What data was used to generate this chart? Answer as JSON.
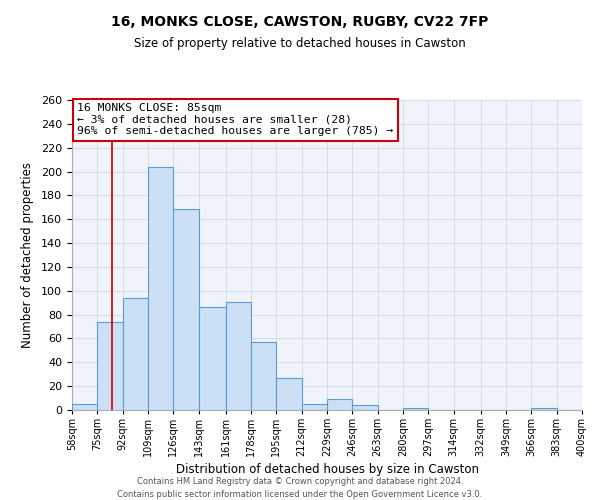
{
  "title": "16, MONKS CLOSE, CAWSTON, RUGBY, CV22 7FP",
  "subtitle": "Size of property relative to detached houses in Cawston",
  "xlabel": "Distribution of detached houses by size in Cawston",
  "ylabel": "Number of detached properties",
  "bin_edges": [
    58,
    75,
    92,
    109,
    126,
    143,
    161,
    178,
    195,
    212,
    229,
    246,
    263,
    280,
    297,
    314,
    332,
    349,
    366,
    383,
    400
  ],
  "bin_labels": [
    "58sqm",
    "75sqm",
    "92sqm",
    "109sqm",
    "126sqm",
    "143sqm",
    "161sqm",
    "178sqm",
    "195sqm",
    "212sqm",
    "229sqm",
    "246sqm",
    "263sqm",
    "280sqm",
    "297sqm",
    "314sqm",
    "332sqm",
    "349sqm",
    "366sqm",
    "383sqm",
    "400sqm"
  ],
  "counts": [
    5,
    74,
    94,
    204,
    169,
    86,
    91,
    57,
    27,
    5,
    9,
    4,
    0,
    2,
    0,
    0,
    0,
    0,
    2,
    0
  ],
  "bar_face_color": "#cce0f5",
  "bar_edge_color": "#5b9bd5",
  "property_line_x": 85,
  "property_line_color": "#cc0000",
  "annotation_title": "16 MONKS CLOSE: 85sqm",
  "annotation_line1": "← 3% of detached houses are smaller (28)",
  "annotation_line2": "96% of semi-detached houses are larger (785) →",
  "annotation_box_color": "#cc0000",
  "ylim": [
    0,
    260
  ],
  "yticks": [
    0,
    20,
    40,
    60,
    80,
    100,
    120,
    140,
    160,
    180,
    200,
    220,
    240,
    260
  ],
  "footer_line1": "Contains HM Land Registry data © Crown copyright and database right 2024.",
  "footer_line2": "Contains public sector information licensed under the Open Government Licence v3.0."
}
